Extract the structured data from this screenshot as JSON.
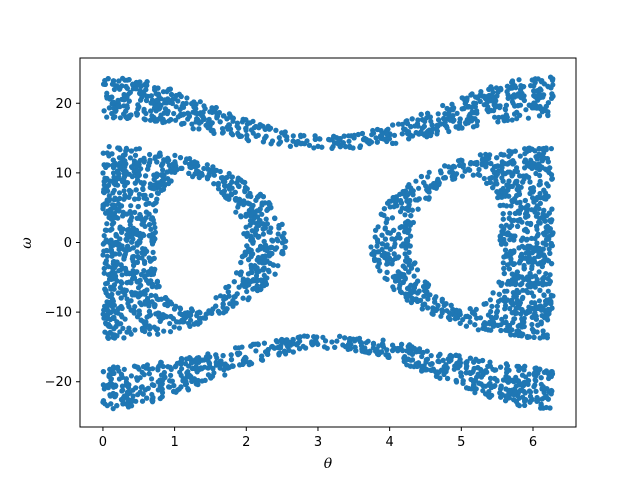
{
  "chart_data": {
    "type": "scatter",
    "title": "",
    "xlabel": "θ",
    "ylabel": "ω",
    "xlim": [
      -0.32,
      6.6
    ],
    "ylim": [
      -26.5,
      26.5
    ],
    "xticks": [
      0,
      1,
      2,
      3,
      4,
      5,
      6
    ],
    "xtick_labels": [
      "0",
      "1",
      "2",
      "3",
      "4",
      "5",
      "6"
    ],
    "yticks": [
      -20,
      -10,
      0,
      10,
      20
    ],
    "ytick_labels": [
      "−20",
      "−10",
      "0",
      "10",
      "20"
    ],
    "grid": false,
    "legend": "none",
    "marker_color": "#1f77b4",
    "description_regions": {
      "upper_band": {
        "x": [
          0,
          6.28
        ],
        "y_center_at_x0": 21,
        "y_center_at_pi": 14.3,
        "half_width_at_edges": 3,
        "half_width_at_pi": 1
      },
      "lower_band": {
        "x": [
          0,
          6.28
        ],
        "y_center_at_x0": -21,
        "y_center_at_pi": -14.3,
        "half_width_at_edges": 3,
        "half_width_at_pi": 1
      },
      "left_island": {
        "theta_range": [
          0,
          2.6
        ],
        "omega_range": [
          -14,
          14
        ]
      },
      "right_island": {
        "theta_range": [
          3.7,
          6.28
        ],
        "omega_range": [
          -14,
          14
        ]
      }
    }
  }
}
